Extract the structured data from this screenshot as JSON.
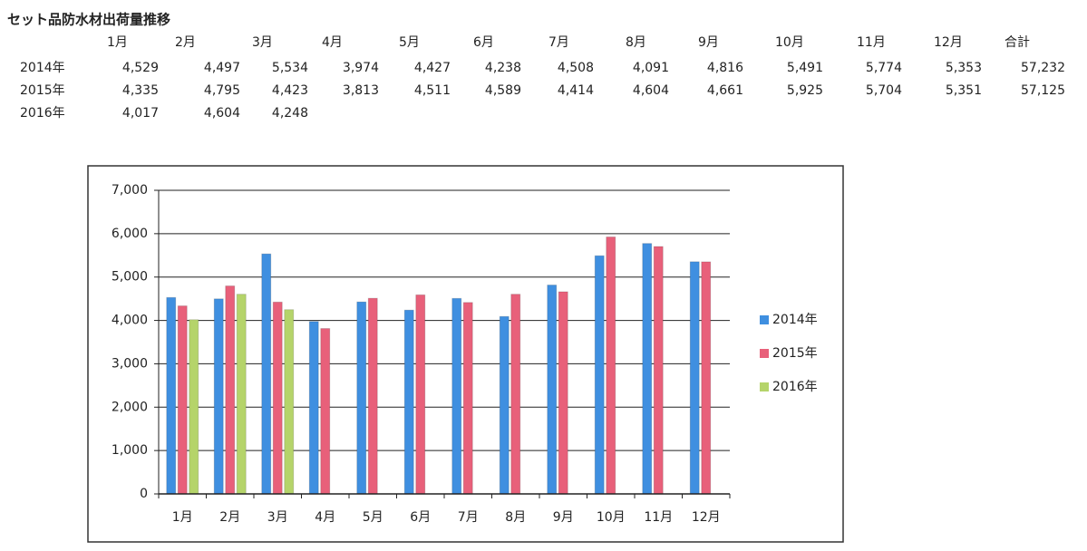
{
  "title": "セット品防水材出荷量推移",
  "table": {
    "header": [
      "1月",
      "2月",
      "3月",
      "4月",
      "5月",
      "6月",
      "7月",
      "8月",
      "9月",
      "10月",
      "11月",
      "12月",
      "合計"
    ],
    "rows": [
      {
        "label": "2014年",
        "cells": [
          "4,529",
          "4,497",
          "5,534",
          "3,974",
          "4,427",
          "4,238",
          "4,508",
          "4,091",
          "4,816",
          "5,491",
          "5,774",
          "5,353",
          "57,232"
        ]
      },
      {
        "label": "2015年",
        "cells": [
          "4,335",
          "4,795",
          "4,423",
          "3,813",
          "4,511",
          "4,589",
          "4,414",
          "4,604",
          "4,661",
          "5,925",
          "5,704",
          "5,351",
          "57,125"
        ]
      },
      {
        "label": "2016年",
        "cells": [
          "4,017",
          "4,604",
          "4,248"
        ]
      }
    ]
  },
  "chart_data": {
    "type": "bar",
    "categories": [
      "1月",
      "2月",
      "3月",
      "4月",
      "5月",
      "6月",
      "7月",
      "8月",
      "9月",
      "10月",
      "11月",
      "12月"
    ],
    "series": [
      {
        "name": "2014年",
        "color": "#3f8fe0",
        "values": [
          4529,
          4497,
          5534,
          3974,
          4427,
          4238,
          4508,
          4091,
          4816,
          5491,
          5774,
          5353
        ]
      },
      {
        "name": "2015年",
        "color": "#e8607a",
        "values": [
          4335,
          4795,
          4423,
          3813,
          4511,
          4589,
          4414,
          4604,
          4661,
          5925,
          5704,
          5351
        ]
      },
      {
        "name": "2016年",
        "color": "#b5d46a",
        "values": [
          4017,
          4604,
          4248,
          null,
          null,
          null,
          null,
          null,
          null,
          null,
          null,
          null
        ]
      }
    ],
    "ylim": [
      0,
      7000
    ],
    "yticks": [
      0,
      {
        "value": 1000,
        "label": "1,000"
      },
      {
        "value": 2000,
        "label": "2,000"
      },
      {
        "value": 3000,
        "label": "3,000"
      },
      {
        "value": 4000,
        "label": "4,000"
      },
      {
        "value": 5000,
        "label": "5,000"
      },
      {
        "value": 6000,
        "label": "6,000"
      },
      {
        "value": 7000,
        "label": "7,000"
      }
    ],
    "grid": true,
    "legend": "right"
  }
}
